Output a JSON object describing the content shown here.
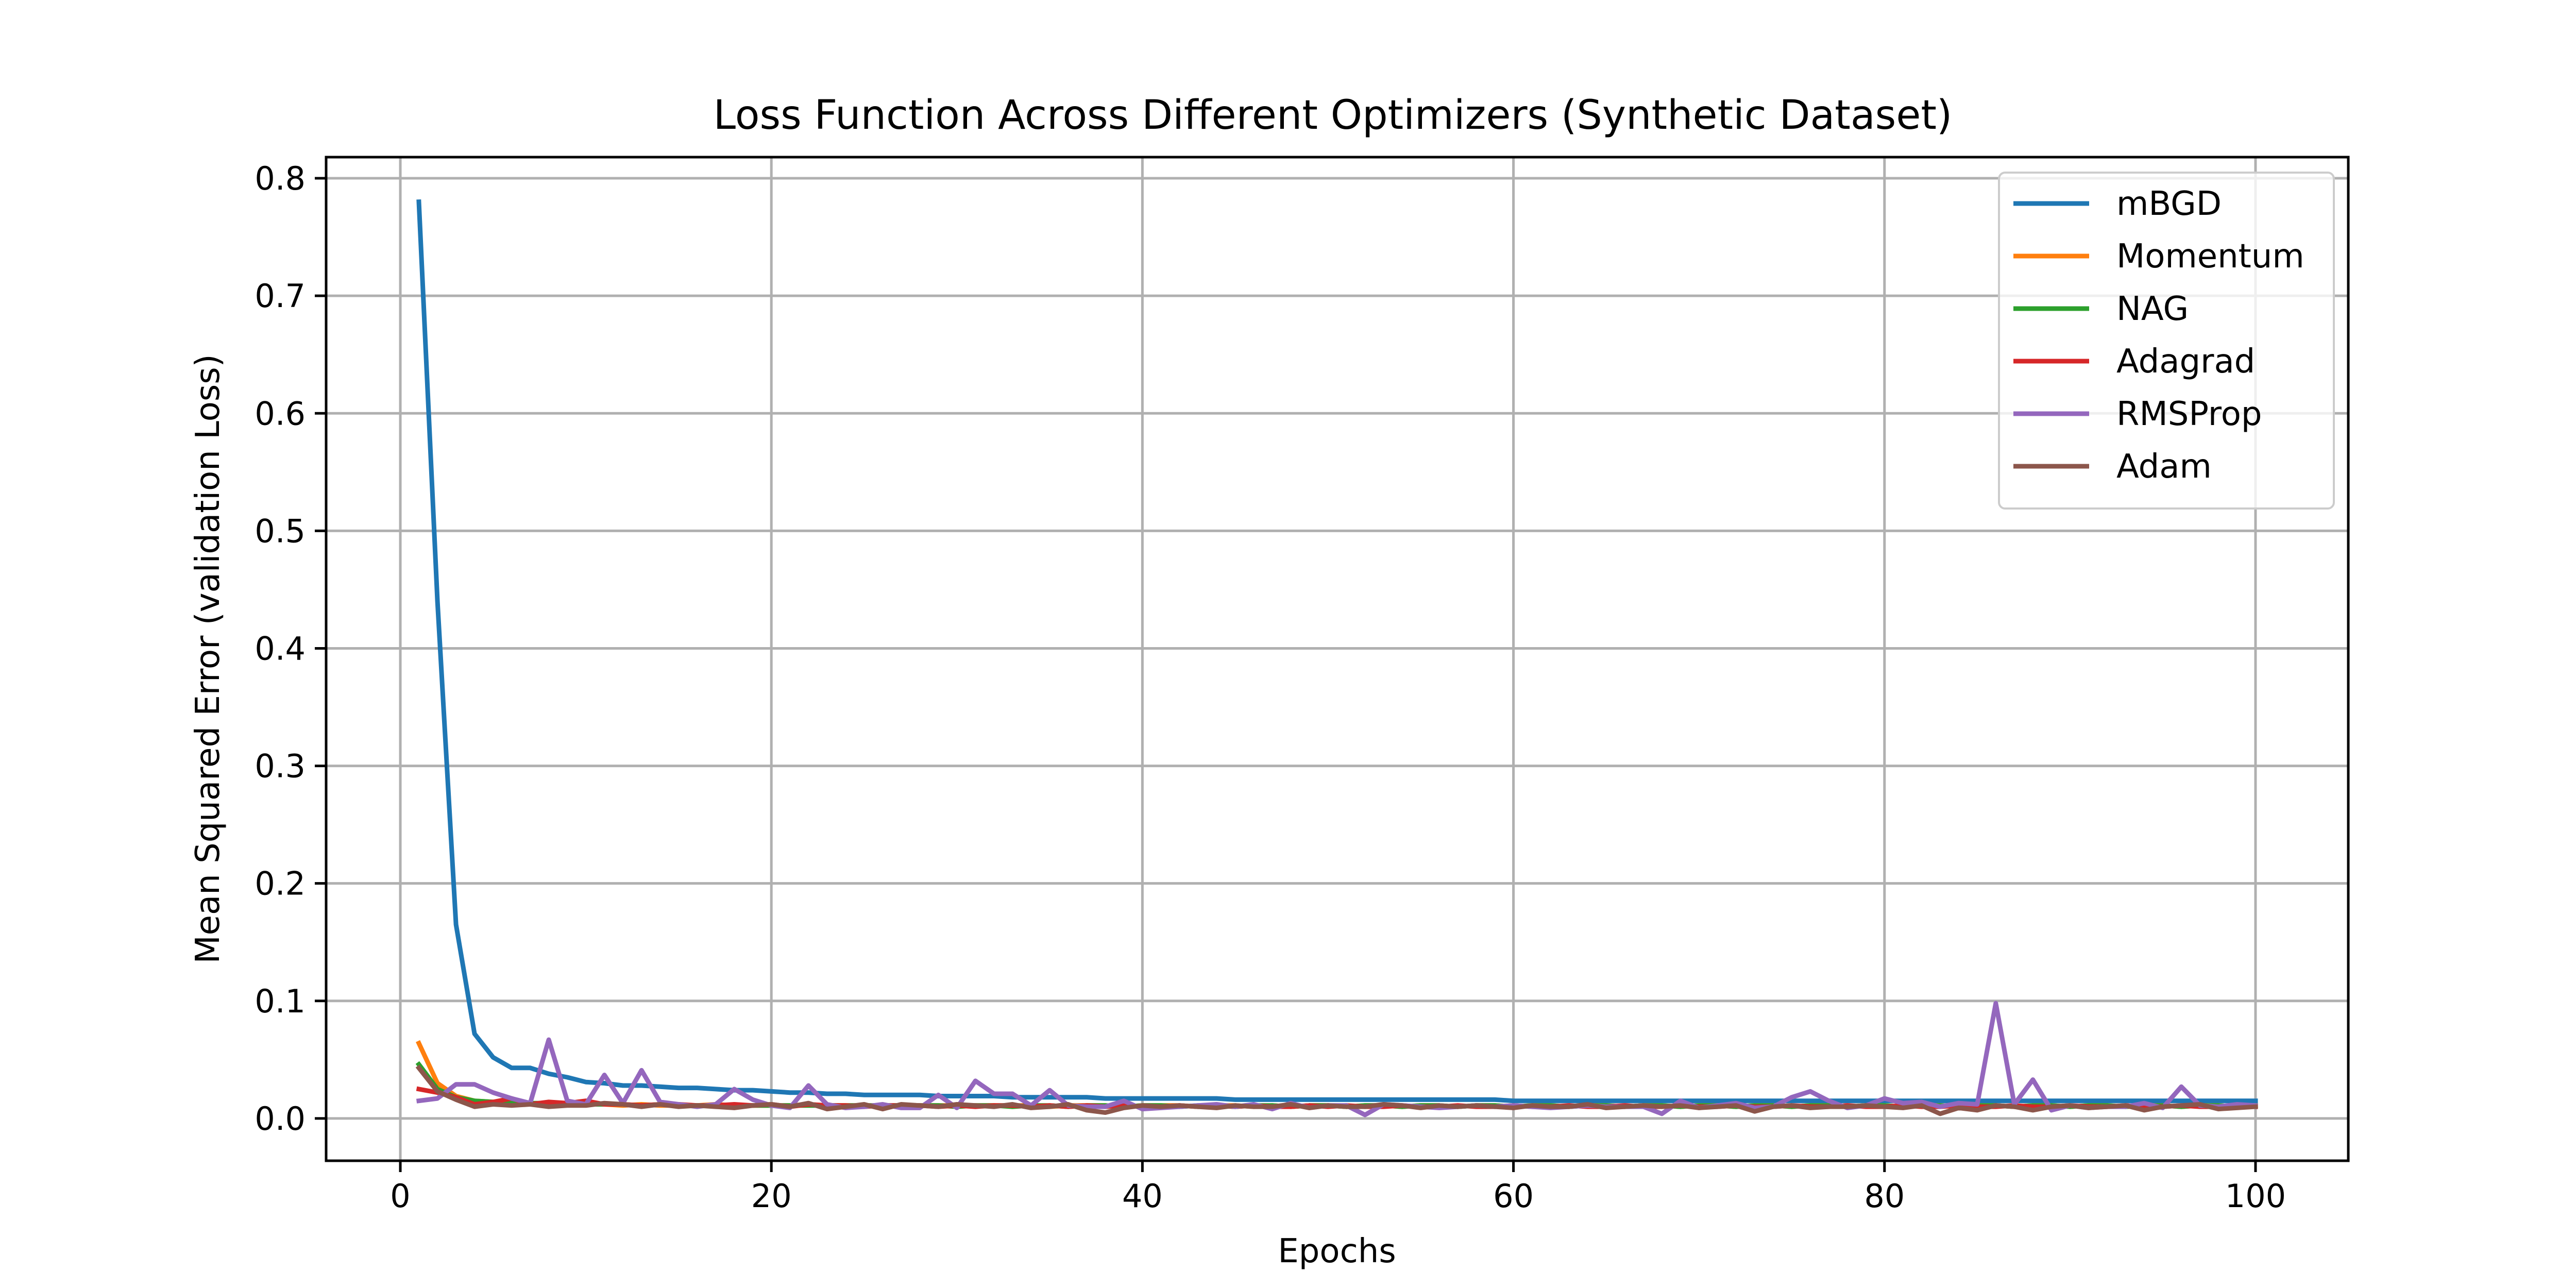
{
  "chart_data": {
    "type": "line",
    "title": "Loss Function Across Different Optimizers (Synthetic Dataset)",
    "xlabel": "Epochs",
    "ylabel": "Mean Squared Error (validation Loss)",
    "xlim": [
      -4,
      105
    ],
    "ylim": [
      -0.036,
      0.818
    ],
    "x_ticks": [
      0,
      20,
      40,
      60,
      80,
      100
    ],
    "x_tick_labels": [
      "0",
      "20",
      "40",
      "60",
      "80",
      "100"
    ],
    "y_ticks": [
      0.0,
      0.1,
      0.2,
      0.3,
      0.4,
      0.5,
      0.6,
      0.7,
      0.8
    ],
    "y_tick_labels": [
      "0.0",
      "0.1",
      "0.2",
      "0.3",
      "0.4",
      "0.5",
      "0.6",
      "0.7",
      "0.8"
    ],
    "grid": true,
    "legend_position": "top-right",
    "x_start": 1,
    "x_step": 1,
    "series": [
      {
        "name": "mBGD",
        "color": "#1f77b4",
        "values": [
          0.78,
          0.44,
          0.165,
          0.072,
          0.052,
          0.043,
          0.043,
          0.038,
          0.035,
          0.031,
          0.03,
          0.028,
          0.028,
          0.027,
          0.026,
          0.026,
          0.025,
          0.024,
          0.024,
          0.023,
          0.022,
          0.022,
          0.021,
          0.021,
          0.02,
          0.02,
          0.02,
          0.02,
          0.019,
          0.019,
          0.019,
          0.019,
          0.018,
          0.018,
          0.018,
          0.018,
          0.018,
          0.017,
          0.017,
          0.017,
          0.017,
          0.017,
          0.017,
          0.017,
          0.016,
          0.016,
          0.016,
          0.016,
          0.016,
          0.016,
          0.016,
          0.016,
          0.016,
          0.016,
          0.016,
          0.016,
          0.016,
          0.016,
          0.016,
          0.015,
          0.015,
          0.015,
          0.015,
          0.015,
          0.015,
          0.015,
          0.015,
          0.015,
          0.015,
          0.015,
          0.015,
          0.015,
          0.015,
          0.015,
          0.015,
          0.015,
          0.015,
          0.015,
          0.015,
          0.015,
          0.015,
          0.015,
          0.015,
          0.015,
          0.015,
          0.015,
          0.015,
          0.015,
          0.015,
          0.015,
          0.015,
          0.015,
          0.015,
          0.015,
          0.015,
          0.015,
          0.015,
          0.015,
          0.015,
          0.015
        ]
      },
      {
        "name": "Momentum",
        "color": "#ff7f0e",
        "values": [
          0.064,
          0.03,
          0.019,
          0.015,
          0.014,
          0.013,
          0.013,
          0.012,
          0.012,
          0.012,
          0.012,
          0.011,
          0.012,
          0.011,
          0.011,
          0.011,
          0.012,
          0.011,
          0.011,
          0.011,
          0.011,
          0.012,
          0.011,
          0.011,
          0.011,
          0.011,
          0.011,
          0.011,
          0.011,
          0.011,
          0.011,
          0.011,
          0.011,
          0.011,
          0.01,
          0.011,
          0.011,
          0.011,
          0.01,
          0.011,
          0.011,
          0.011,
          0.01,
          0.011,
          0.011,
          0.01,
          0.011,
          0.01,
          0.011,
          0.011,
          0.01,
          0.011,
          0.011,
          0.01,
          0.011,
          0.011,
          0.01,
          0.011,
          0.011,
          0.01,
          0.011,
          0.011,
          0.01,
          0.011,
          0.011,
          0.01,
          0.011,
          0.011,
          0.01,
          0.011,
          0.011,
          0.01,
          0.011,
          0.011,
          0.01,
          0.011,
          0.011,
          0.01,
          0.011,
          0.011,
          0.01,
          0.011,
          0.011,
          0.01,
          0.011,
          0.011,
          0.01,
          0.011,
          0.011,
          0.01,
          0.011,
          0.011,
          0.01,
          0.011,
          0.011,
          0.01,
          0.011,
          0.011,
          0.01,
          0.011
        ]
      },
      {
        "name": "NAG",
        "color": "#2ca02c",
        "values": [
          0.046,
          0.025,
          0.018,
          0.015,
          0.014,
          0.013,
          0.013,
          0.013,
          0.012,
          0.012,
          0.012,
          0.012,
          0.011,
          0.012,
          0.011,
          0.011,
          0.011,
          0.011,
          0.011,
          0.011,
          0.011,
          0.011,
          0.011,
          0.011,
          0.011,
          0.011,
          0.011,
          0.011,
          0.011,
          0.01,
          0.011,
          0.011,
          0.01,
          0.011,
          0.011,
          0.01,
          0.011,
          0.011,
          0.01,
          0.011,
          0.011,
          0.01,
          0.011,
          0.011,
          0.01,
          0.011,
          0.011,
          0.01,
          0.011,
          0.011,
          0.01,
          0.011,
          0.011,
          0.01,
          0.011,
          0.011,
          0.01,
          0.011,
          0.011,
          0.01,
          0.011,
          0.011,
          0.01,
          0.011,
          0.011,
          0.01,
          0.011,
          0.011,
          0.01,
          0.011,
          0.011,
          0.01,
          0.011,
          0.011,
          0.01,
          0.011,
          0.011,
          0.01,
          0.011,
          0.011,
          0.01,
          0.011,
          0.011,
          0.01,
          0.011,
          0.011,
          0.01,
          0.011,
          0.011,
          0.01,
          0.011,
          0.011,
          0.01,
          0.011,
          0.011,
          0.01,
          0.011,
          0.011,
          0.01,
          0.011
        ]
      },
      {
        "name": "Adagrad",
        "color": "#d62728",
        "values": [
          0.025,
          0.022,
          0.018,
          0.012,
          0.014,
          0.017,
          0.012,
          0.014,
          0.013,
          0.015,
          0.012,
          0.012,
          0.011,
          0.012,
          0.012,
          0.011,
          0.011,
          0.012,
          0.011,
          0.012,
          0.01,
          0.012,
          0.011,
          0.011,
          0.01,
          0.011,
          0.011,
          0.011,
          0.01,
          0.011,
          0.01,
          0.011,
          0.011,
          0.01,
          0.011,
          0.01,
          0.011,
          0.01,
          0.011,
          0.01,
          0.01,
          0.011,
          0.01,
          0.011,
          0.01,
          0.011,
          0.01,
          0.01,
          0.011,
          0.01,
          0.011,
          0.01,
          0.01,
          0.011,
          0.01,
          0.01,
          0.011,
          0.01,
          0.01,
          0.011,
          0.01,
          0.01,
          0.011,
          0.01,
          0.01,
          0.011,
          0.01,
          0.01,
          0.011,
          0.01,
          0.01,
          0.011,
          0.01,
          0.01,
          0.011,
          0.01,
          0.01,
          0.011,
          0.01,
          0.01,
          0.011,
          0.01,
          0.01,
          0.011,
          0.01,
          0.01,
          0.011,
          0.01,
          0.01,
          0.011,
          0.01,
          0.01,
          0.011,
          0.01,
          0.01,
          0.011,
          0.01,
          0.01,
          0.011,
          0.01
        ]
      },
      {
        "name": "RMSProp",
        "color": "#9467bd",
        "values": [
          0.015,
          0.017,
          0.029,
          0.029,
          0.022,
          0.017,
          0.013,
          0.067,
          0.015,
          0.012,
          0.037,
          0.013,
          0.041,
          0.014,
          0.012,
          0.01,
          0.012,
          0.025,
          0.016,
          0.011,
          0.009,
          0.028,
          0.012,
          0.009,
          0.01,
          0.012,
          0.009,
          0.009,
          0.02,
          0.009,
          0.032,
          0.021,
          0.021,
          0.011,
          0.024,
          0.011,
          0.01,
          0.01,
          0.015,
          0.008,
          0.009,
          0.01,
          0.011,
          0.012,
          0.01,
          0.012,
          0.008,
          0.013,
          0.009,
          0.011,
          0.011,
          0.003,
          0.012,
          0.011,
          0.01,
          0.009,
          0.01,
          0.011,
          0.01,
          0.011,
          0.01,
          0.009,
          0.01,
          0.011,
          0.01,
          0.01,
          0.01,
          0.004,
          0.015,
          0.009,
          0.011,
          0.013,
          0.009,
          0.01,
          0.018,
          0.023,
          0.015,
          0.009,
          0.011,
          0.017,
          0.013,
          0.014,
          0.01,
          0.013,
          0.012,
          0.098,
          0.012,
          0.033,
          0.007,
          0.011,
          0.009,
          0.01,
          0.01,
          0.013,
          0.009,
          0.027,
          0.011,
          0.01,
          0.012,
          0.011
        ]
      },
      {
        "name": "Adam",
        "color": "#8c564b",
        "values": [
          0.043,
          0.023,
          0.016,
          0.01,
          0.012,
          0.011,
          0.012,
          0.01,
          0.011,
          0.011,
          0.013,
          0.012,
          0.01,
          0.012,
          0.01,
          0.011,
          0.01,
          0.009,
          0.011,
          0.012,
          0.01,
          0.013,
          0.008,
          0.01,
          0.012,
          0.008,
          0.012,
          0.011,
          0.01,
          0.012,
          0.011,
          0.01,
          0.012,
          0.009,
          0.01,
          0.012,
          0.007,
          0.005,
          0.009,
          0.011,
          0.01,
          0.011,
          0.01,
          0.009,
          0.011,
          0.01,
          0.01,
          0.012,
          0.009,
          0.011,
          0.01,
          0.01,
          0.012,
          0.011,
          0.009,
          0.011,
          0.01,
          0.011,
          0.01,
          0.009,
          0.011,
          0.01,
          0.01,
          0.012,
          0.009,
          0.01,
          0.011,
          0.01,
          0.011,
          0.009,
          0.01,
          0.011,
          0.006,
          0.01,
          0.011,
          0.009,
          0.01,
          0.01,
          0.011,
          0.01,
          0.009,
          0.011,
          0.004,
          0.009,
          0.007,
          0.011,
          0.01,
          0.007,
          0.01,
          0.011,
          0.009,
          0.01,
          0.011,
          0.007,
          0.01,
          0.011,
          0.012,
          0.008,
          0.009,
          0.01
        ]
      }
    ]
  }
}
